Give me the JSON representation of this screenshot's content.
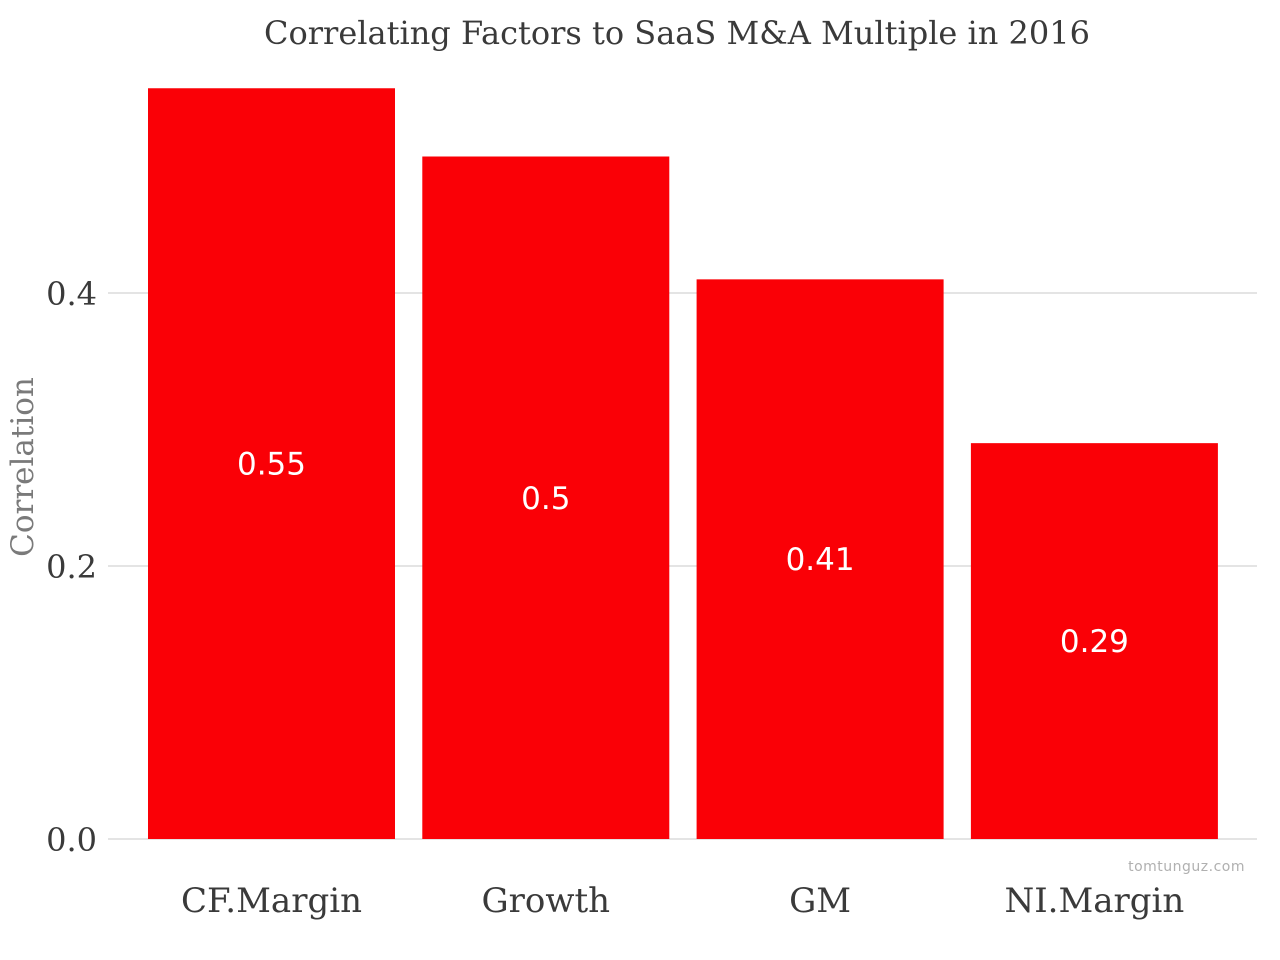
{
  "chart_data": {
    "type": "bar",
    "title": "Correlating Factors to SaaS M&A Multiple in 2016",
    "xlabel": "",
    "ylabel": "Correlation",
    "categories": [
      "CF.Margin",
      "Growth",
      "GM",
      "NI.Margin"
    ],
    "values": [
      0.55,
      0.5,
      0.41,
      0.29
    ],
    "value_labels": [
      "0.55",
      "0.5",
      "0.41",
      "0.29"
    ],
    "yticks": [
      0.0,
      0.2,
      0.4
    ],
    "ytick_labels": [
      "0.0",
      "0.2",
      "0.4"
    ],
    "ylim": [
      0,
      0.55
    ],
    "grid": true,
    "legend": "none",
    "bar_color": "#fa0006",
    "watermark": "tomtunguz.com"
  }
}
